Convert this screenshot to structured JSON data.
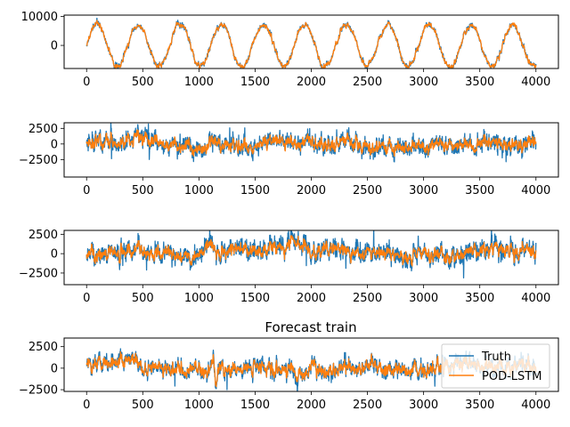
{
  "figure": {
    "background": "#ffffff"
  },
  "chart_data": [
    {
      "type": "line",
      "title": "",
      "xlabel": "",
      "ylabel": "",
      "xlim": [
        -200,
        4200
      ],
      "ylim": [
        -8000,
        10500
      ],
      "xticks": [
        0,
        500,
        1000,
        1500,
        2000,
        2500,
        3000,
        3500,
        4000
      ],
      "yticks": [
        0,
        10000
      ],
      "ytick_labels": [
        "0",
        "10000"
      ],
      "grid": false,
      "legend": false,
      "signal": {
        "n_points": 4001,
        "kind": "sinusoid",
        "amplitude": 7200,
        "period": 370,
        "phase_sample": 90,
        "noise": 700,
        "truth_noise_extra": 500,
        "seed": 11
      },
      "series": [
        {
          "color": "#1f77b4"
        },
        {
          "color": "#ff7f0e"
        }
      ]
    },
    {
      "type": "line",
      "title": "",
      "xlabel": "",
      "ylabel": "",
      "xlim": [
        -200,
        4200
      ],
      "ylim": [
        -5300,
        3400
      ],
      "xticks": [
        0,
        500,
        1000,
        1500,
        2000,
        2500,
        3000,
        3500,
        4000
      ],
      "yticks": [
        -2500,
        0,
        2500
      ],
      "ytick_labels": [
        "−2500",
        "0",
        "2500"
      ],
      "grid": false,
      "legend": false,
      "signal": {
        "n_points": 4001,
        "kind": "noise",
        "amplitude": 900,
        "noise": 600,
        "truth_noise_extra": 900,
        "seed": 23
      },
      "series": [
        {
          "color": "#1f77b4"
        },
        {
          "color": "#ff7f0e"
        }
      ]
    },
    {
      "type": "line",
      "title": "",
      "xlabel": "",
      "ylabel": "",
      "xlim": [
        -200,
        4200
      ],
      "ylim": [
        -4000,
        3000
      ],
      "xticks": [
        0,
        500,
        1000,
        1500,
        2000,
        2500,
        3000,
        3500,
        4000
      ],
      "yticks": [
        -2500,
        0,
        2500
      ],
      "ytick_labels": [
        "−2500",
        "0",
        "2500"
      ],
      "grid": false,
      "legend": false,
      "signal": {
        "n_points": 4001,
        "kind": "noise",
        "amplitude": 800,
        "noise": 500,
        "truth_noise_extra": 800,
        "seed": 37
      },
      "series": [
        {
          "color": "#1f77b4"
        },
        {
          "color": "#ff7f0e"
        }
      ]
    },
    {
      "type": "line",
      "title": "Forecast train",
      "xlabel": "",
      "ylabel": "",
      "xlim": [
        -200,
        4200
      ],
      "ylim": [
        -2700,
        3500
      ],
      "xticks": [
        0,
        500,
        1000,
        1500,
        2000,
        2500,
        3000,
        3500,
        4000
      ],
      "yticks": [
        -2500,
        0,
        2500
      ],
      "ytick_labels": [
        "−2500",
        "0",
        "2500"
      ],
      "grid": false,
      "legend": true,
      "legend_position": "right",
      "signal": {
        "n_points": 4001,
        "kind": "noise",
        "amplitude": 800,
        "noise": 450,
        "truth_noise_extra": 500,
        "seed": 53
      },
      "series": [
        {
          "name": "Truth",
          "color": "#1f77b4"
        },
        {
          "name": "POD-LSTM",
          "color": "#ff7f0e"
        }
      ]
    }
  ]
}
